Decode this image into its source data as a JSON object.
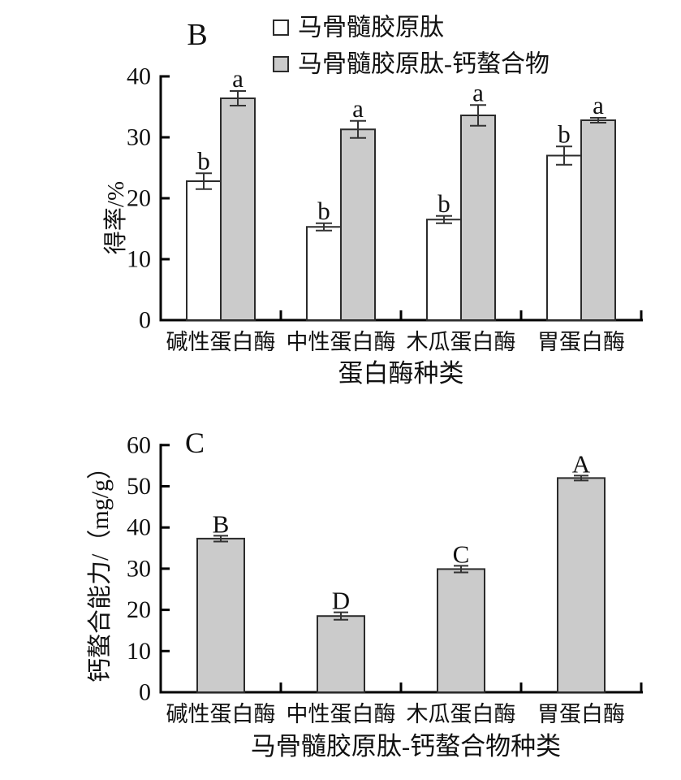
{
  "colors": {
    "background": "#ffffff",
    "bar_white_fill": "#ffffff",
    "bar_gray_fill": "#cbcbcb",
    "bar_border": "#2b2b2b",
    "axis": "#000000",
    "error_bar": "#333333",
    "text": "#111111"
  },
  "chart_data": [
    {
      "type": "bar",
      "panel_label": "B",
      "categories": [
        "碱性蛋白酶",
        "中性蛋白酶",
        "木瓜蛋白酶",
        "胃蛋白酶"
      ],
      "series": [
        {
          "name": "马骨髓胶原肽",
          "fill": "white",
          "values": [
            22.8,
            15.3,
            16.5,
            27.0
          ],
          "errors": [
            1.3,
            0.6,
            0.6,
            1.5
          ],
          "sig_labels": [
            "b",
            "b",
            "b",
            "b"
          ]
        },
        {
          "name": "马骨髓胶原肽-钙螯合物",
          "fill": "gray",
          "values": [
            36.4,
            31.3,
            33.6,
            32.8
          ],
          "errors": [
            1.2,
            1.4,
            1.7,
            0.4
          ],
          "sig_labels": [
            "a",
            "a",
            "a",
            "a"
          ]
        }
      ],
      "ylabel": "得率/%",
      "xlabel": "蛋白酶种类",
      "ylim": [
        0,
        40
      ],
      "yticks": [
        0,
        10,
        20,
        30,
        40
      ],
      "legend_position": "top",
      "grid": false
    },
    {
      "type": "bar",
      "panel_label": "C",
      "categories": [
        "碱性蛋白酶",
        "中性蛋白酶",
        "木瓜蛋白酶",
        "胃蛋白酶"
      ],
      "series": [
        {
          "name": "马骨髓胶原肽-钙螯合物",
          "fill": "gray",
          "values": [
            37.3,
            18.5,
            29.9,
            52.0
          ],
          "errors": [
            0.7,
            0.9,
            0.8,
            0.6
          ],
          "sig_labels": [
            "B",
            "D",
            "C",
            "A"
          ]
        }
      ],
      "ylabel": "钙螯合能力/（mg/g）",
      "xlabel": "马骨髓胶原肽-钙螯合物种类",
      "ylim": [
        0,
        60
      ],
      "yticks": [
        0,
        10,
        20,
        30,
        40,
        50,
        60
      ],
      "legend_position": "none",
      "grid": false
    }
  ]
}
